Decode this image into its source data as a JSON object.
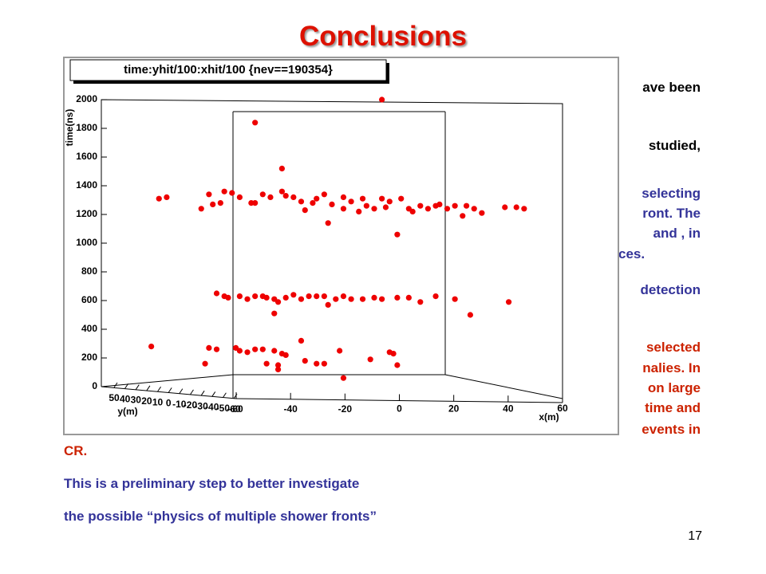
{
  "slide": {
    "title": "Conclusions",
    "fragments": [
      {
        "text": "ave been",
        "color": "#000000"
      },
      {
        "text": "studied,",
        "color": "#000000"
      },
      {
        "text": "selecting",
        "color": "#333399"
      },
      {
        "text": "ront. The",
        "color": "#333399"
      },
      {
        "text": "and , in",
        "color": "#333399"
      },
      {
        "text": "ces.",
        "color": "#333399"
      },
      {
        "text": "detection",
        "color": "#333399"
      },
      {
        "text": "selected",
        "color": "#cc2200"
      },
      {
        "text": "nalies. In",
        "color": "#cc2200"
      },
      {
        "text": "on large",
        "color": "#cc2200"
      },
      {
        "text": "time and",
        "color": "#cc2200"
      },
      {
        "text": "events in",
        "color": "#cc2200"
      },
      {
        "text": "CR.",
        "color": "#cc2200"
      }
    ],
    "lines": [
      "This is a preliminary step to better investigate",
      "the possible “physics of multiple shower fronts”"
    ],
    "page_number": "17"
  },
  "chart_data": {
    "type": "scatter",
    "title": "time:yhit/100:xhit/100 {nev==190354}",
    "x_label": "x(m)",
    "y_label": "y(m)",
    "z_label": "time(ns)",
    "color": "#ee0000",
    "xlim": [
      -60,
      60
    ],
    "xticks": [
      -60,
      -40,
      -20,
      0,
      20,
      40,
      60
    ],
    "ylim": [
      -60,
      50
    ],
    "yticks": [
      50,
      40,
      30,
      20,
      10,
      0,
      -10,
      -20,
      -30,
      -40,
      -50,
      -60
    ],
    "zlim": [
      0,
      2000
    ],
    "zticks": [
      0,
      200,
      400,
      600,
      800,
      1000,
      1200,
      1400,
      1600,
      1800,
      2000
    ],
    "x": [
      -45,
      -43,
      -34,
      -32,
      -31,
      -29,
      -28,
      -26,
      -24,
      -21,
      -20,
      -18,
      -16,
      -13,
      -12,
      -10,
      -8,
      -7,
      -5,
      -4,
      -2,
      -1,
      0,
      3,
      3,
      5,
      7,
      8,
      9,
      11,
      13,
      14,
      15,
      17,
      18,
      20,
      21,
      23,
      25,
      27,
      28,
      30,
      32,
      34,
      35,
      37,
      39,
      45,
      48,
      50,
      13,
      -20,
      -13,
      -30,
      -28,
      -27,
      -24,
      -22,
      -20,
      -18,
      -17,
      -15,
      -14,
      -12,
      -15,
      -10,
      -8,
      -6,
      -4,
      -2,
      -1,
      1,
      3,
      5,
      8,
      11,
      13,
      17,
      20,
      23,
      27,
      32,
      36,
      46,
      -47,
      -32,
      -30,
      -33,
      -25,
      -24,
      -22,
      -20,
      -18,
      -15,
      -14,
      -13,
      -12,
      -8,
      -7,
      -4,
      -2,
      2,
      3,
      10,
      15,
      16,
      17,
      -17,
      -14
    ],
    "values": [
      1310,
      1320,
      1240,
      1340,
      1270,
      1280,
      1360,
      1350,
      1320,
      1280,
      1280,
      1340,
      1320,
      1360,
      1330,
      1320,
      1290,
      1230,
      1280,
      1310,
      1340,
      1140,
      1270,
      1320,
      1240,
      1290,
      1220,
      1310,
      1260,
      1240,
      1310,
      1250,
      1290,
      1060,
      1310,
      1240,
      1220,
      1260,
      1240,
      1260,
      1270,
      1240,
      1260,
      1190,
      1260,
      1240,
      1210,
      1250,
      1250,
      1240,
      2000,
      1840,
      1520,
      650,
      630,
      620,
      630,
      610,
      630,
      630,
      620,
      610,
      590,
      620,
      510,
      640,
      610,
      630,
      630,
      630,
      570,
      610,
      630,
      610,
      610,
      620,
      610,
      620,
      620,
      590,
      630,
      610,
      500,
      590,
      280,
      270,
      260,
      160,
      270,
      250,
      240,
      260,
      260,
      250,
      150,
      230,
      220,
      320,
      180,
      160,
      160,
      250,
      60,
      190,
      240,
      230,
      150,
      160,
      120
    ]
  }
}
